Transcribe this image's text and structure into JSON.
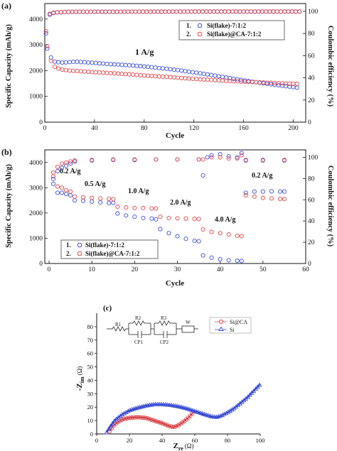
{
  "panels": [
    {
      "label": "(a)",
      "annotation": "1 A/g",
      "xlabel": "Cycle",
      "ylabel_left": "Specific Capacity (mAh/g)",
      "ylabel_right": "Coulombic efficiency (%)",
      "legend": [
        "1.",
        "Si(flake)-7:1:2",
        "2.",
        "Si(flake)@CA-7:1:2"
      ]
    },
    {
      "label": "(b)",
      "annotations": [
        "0.2 A/g",
        "0.5 A/g",
        "1.0 A/g",
        "2.0 A/g",
        "4.0 A/g",
        "0.2 A/g"
      ],
      "xlabel": "Cycle",
      "ylabel_left": "Specific Capacity (mAh/g)",
      "ylabel_right": "Coulombic efficiency (%)",
      "legend": [
        "1.",
        "Si(flake)-7:1:2",
        "2.",
        "Si(flake)@CA-7:1:2"
      ]
    },
    {
      "label": "(c)",
      "xlabel": "Z",
      "xlabel_sub": "re",
      "xunit": "(Ω)",
      "ylabel": "-Z",
      "ylabel_sub": "im",
      "yunit": "(Ω)",
      "legend": [
        "Si@CA",
        "Si"
      ],
      "circuit_labels": [
        "R1",
        "R2",
        "CP1",
        "R3",
        "CP2",
        "W"
      ]
    }
  ],
  "colors": {
    "si": "#3b4fd8",
    "sica": "#e0474c",
    "fit_blue": "#1f33c8",
    "fit_red": "#cc2030"
  },
  "chart_data": [
    {
      "type": "scatter",
      "x": {
        "range": [
          0,
          210
        ],
        "ticks": [
          0,
          40,
          80,
          120,
          160,
          200
        ]
      },
      "y_left": {
        "range": [
          0,
          4600
        ],
        "ticks": [
          0,
          1000,
          2000,
          3000,
          4000
        ]
      },
      "y_right": {
        "range": [
          0,
          107
        ],
        "ticks": [
          0,
          20,
          40,
          60,
          80,
          100
        ]
      },
      "series": [
        {
          "name": "Si(flake)-7:1:2",
          "axis": "left",
          "points": [
            [
              2,
              2850
            ],
            [
              4,
              2600
            ],
            [
              6,
              2420
            ],
            [
              8,
              2350
            ],
            [
              10,
              2330
            ],
            [
              12,
              2320
            ],
            [
              15,
              2310
            ],
            [
              20,
              2330
            ],
            [
              25,
              2350
            ],
            [
              30,
              2330
            ],
            [
              40,
              2300
            ],
            [
              50,
              2260
            ],
            [
              60,
              2230
            ],
            [
              70,
              2200
            ],
            [
              80,
              2160
            ],
            [
              90,
              2110
            ],
            [
              100,
              2060
            ],
            [
              110,
              2000
            ],
            [
              120,
              1930
            ],
            [
              130,
              1860
            ],
            [
              140,
              1780
            ],
            [
              150,
              1700
            ],
            [
              160,
              1620
            ],
            [
              170,
              1550
            ],
            [
              180,
              1480
            ],
            [
              190,
              1420
            ],
            [
              200,
              1360
            ],
            [
              205,
              1320
            ]
          ]
        },
        {
          "name": "Si(flake)@CA-7:1:2",
          "axis": "left",
          "points": [
            [
              2,
              2950
            ],
            [
              4,
              2500
            ],
            [
              6,
              2250
            ],
            [
              8,
              2150
            ],
            [
              10,
              2100
            ],
            [
              12,
              2060
            ],
            [
              15,
              2030
            ],
            [
              20,
              2000
            ],
            [
              30,
              1970
            ],
            [
              40,
              1940
            ],
            [
              50,
              1910
            ],
            [
              60,
              1880
            ],
            [
              70,
              1850
            ],
            [
              80,
              1810
            ],
            [
              90,
              1780
            ],
            [
              100,
              1750
            ],
            [
              110,
              1710
            ],
            [
              120,
              1680
            ],
            [
              130,
              1650
            ],
            [
              140,
              1620
            ],
            [
              150,
              1590
            ],
            [
              160,
              1570
            ],
            [
              170,
              1550
            ],
            [
              180,
              1530
            ],
            [
              190,
              1510
            ],
            [
              200,
              1490
            ],
            [
              205,
              1480
            ]
          ]
        },
        {
          "name": "Si(flake)-7:1:2",
          "axis": "right",
          "points": [
            [
              1,
              80
            ],
            [
              2,
              92
            ],
            [
              3,
              96
            ],
            [
              5,
              98
            ],
            [
              10,
              99
            ],
            [
              20,
              99.5
            ],
            [
              60,
              99.6
            ],
            [
              120,
              99.7
            ],
            [
              205,
              99.7
            ]
          ]
        },
        {
          "name": "Si(flake)@CA-7:1:2",
          "axis": "right",
          "points": [
            [
              1,
              82
            ],
            [
              2,
              93
            ],
            [
              3,
              97
            ],
            [
              5,
              98.5
            ],
            [
              10,
              99.2
            ],
            [
              20,
              99.6
            ],
            [
              60,
              99.7
            ],
            [
              120,
              99.8
            ],
            [
              205,
              99.8
            ]
          ]
        }
      ]
    },
    {
      "type": "scatter",
      "x": {
        "range": [
          -1,
          60
        ],
        "ticks": [
          0,
          10,
          20,
          30,
          40,
          50,
          60
        ]
      },
      "y_left": {
        "range": [
          0,
          4500
        ],
        "ticks": [
          0,
          1000,
          2000,
          3000,
          4000
        ]
      },
      "y_right": {
        "range": [
          0,
          107
        ],
        "ticks": [
          0,
          20,
          40,
          60,
          80,
          100
        ]
      },
      "series": [
        {
          "name": "Si(flake)-7:1:2",
          "axis": "left",
          "points": [
            [
              1,
              3350
            ],
            [
              2,
              2800
            ],
            [
              3,
              2800
            ],
            [
              4,
              2750
            ],
            [
              5,
              2700
            ],
            [
              6,
              2500
            ],
            [
              8,
              2480
            ],
            [
              10,
              2450
            ],
            [
              12,
              2420
            ],
            [
              14,
              2400
            ],
            [
              15,
              2400
            ],
            [
              16,
              1980
            ],
            [
              18,
              1900
            ],
            [
              20,
              1850
            ],
            [
              22,
              1800
            ],
            [
              24,
              1780
            ],
            [
              25,
              1750
            ],
            [
              26,
              1360
            ],
            [
              28,
              1200
            ],
            [
              30,
              1080
            ],
            [
              32,
              980
            ],
            [
              34,
              900
            ],
            [
              35,
              880
            ],
            [
              36,
              320
            ],
            [
              38,
              230
            ],
            [
              40,
              170
            ],
            [
              42,
              130
            ],
            [
              44,
              110
            ],
            [
              45,
              100
            ],
            [
              46,
              2800
            ],
            [
              48,
              2850
            ],
            [
              50,
              2850
            ],
            [
              52,
              2860
            ],
            [
              54,
              2850
            ],
            [
              55,
              2850
            ]
          ]
        },
        {
          "name": "Si(flake)@CA-7:1:2",
          "axis": "left",
          "points": [
            [
              1,
              3600
            ],
            [
              2,
              3050
            ],
            [
              3,
              3000
            ],
            [
              4,
              2900
            ],
            [
              5,
              2850
            ],
            [
              6,
              2650
            ],
            [
              8,
              2620
            ],
            [
              10,
              2600
            ],
            [
              12,
              2580
            ],
            [
              14,
              2560
            ],
            [
              15,
              2550
            ],
            [
              16,
              2250
            ],
            [
              18,
              2220
            ],
            [
              20,
              2200
            ],
            [
              22,
              2200
            ],
            [
              24,
              2180
            ],
            [
              25,
              2180
            ],
            [
              26,
              1850
            ],
            [
              28,
              1800
            ],
            [
              30,
              1790
            ],
            [
              32,
              1780
            ],
            [
              34,
              1770
            ],
            [
              35,
              1760
            ],
            [
              36,
              1350
            ],
            [
              38,
              1250
            ],
            [
              40,
              1200
            ],
            [
              42,
              1150
            ],
            [
              44,
              1100
            ],
            [
              45,
              1080
            ],
            [
              46,
              2700
            ],
            [
              48,
              2650
            ],
            [
              50,
              2600
            ],
            [
              52,
              2580
            ],
            [
              54,
              2560
            ],
            [
              55,
              2550
            ]
          ]
        },
        {
          "name": "Si(flake)-7:1:2",
          "axis": "right",
          "points": [
            [
              1,
              75
            ],
            [
              2,
              87
            ],
            [
              3,
              90
            ],
            [
              4,
              92
            ],
            [
              5,
              94
            ],
            [
              6,
              96
            ],
            [
              10,
              97
            ],
            [
              15,
              97.5
            ],
            [
              20,
              97.5
            ],
            [
              25,
              98
            ],
            [
              30,
              98
            ],
            [
              35,
              98
            ],
            [
              36,
              83
            ],
            [
              37,
              100
            ],
            [
              38,
              102
            ],
            [
              40,
              103
            ],
            [
              42,
              101
            ],
            [
              44,
              100
            ],
            [
              45,
              104
            ],
            [
              46,
              97
            ],
            [
              50,
              97
            ],
            [
              55,
              97
            ]
          ]
        },
        {
          "name": "Si(flake)@CA-7:1:2",
          "axis": "right",
          "points": [
            [
              1,
              82
            ],
            [
              2,
              91
            ],
            [
              3,
              94
            ],
            [
              4,
              95
            ],
            [
              5,
              96
            ],
            [
              6,
              97
            ],
            [
              10,
              97.5
            ],
            [
              15,
              98
            ],
            [
              20,
              98
            ],
            [
              25,
              98
            ],
            [
              30,
              98
            ],
            [
              35,
              98
            ],
            [
              36,
              98
            ],
            [
              38,
              100
            ],
            [
              40,
              100
            ],
            [
              42,
              99
            ],
            [
              44,
              99
            ],
            [
              45,
              102
            ],
            [
              46,
              97.5
            ],
            [
              50,
              97.5
            ],
            [
              55,
              97.5
            ]
          ]
        }
      ]
    },
    {
      "type": "scatter",
      "x": {
        "range": [
          0,
          100
        ],
        "ticks": [
          0,
          20,
          40,
          60,
          80,
          100
        ]
      },
      "y": {
        "range": [
          0,
          90
        ],
        "ticks": [
          0,
          10,
          20,
          30,
          40,
          50,
          60,
          70,
          80
        ]
      },
      "series": [
        {
          "name": "Si@CA",
          "points": [
            [
              8,
              2
            ],
            [
              10,
              6
            ],
            [
              13,
              9
            ],
            [
              16,
              11
            ],
            [
              20,
              12
            ],
            [
              25,
              12.5
            ],
            [
              30,
              12
            ],
            [
              35,
              10
            ],
            [
              40,
              8
            ],
            [
              44,
              6
            ],
            [
              47,
              5
            ],
            [
              50,
              6.5
            ],
            [
              53,
              9
            ],
            [
              56,
              12
            ],
            [
              59,
              16
            ]
          ]
        },
        {
          "name": "Si",
          "points": [
            [
              6,
              1
            ],
            [
              8,
              5
            ],
            [
              11,
              10
            ],
            [
              15,
              14
            ],
            [
              20,
              17.5
            ],
            [
              25,
              19.5
            ],
            [
              30,
              21
            ],
            [
              35,
              22
            ],
            [
              40,
              22
            ],
            [
              45,
              21.5
            ],
            [
              50,
              20.5
            ],
            [
              55,
              19
            ],
            [
              60,
              17
            ],
            [
              65,
              15
            ],
            [
              70,
              13
            ],
            [
              73,
              12.5
            ],
            [
              76,
              13.5
            ],
            [
              80,
              16
            ],
            [
              84,
              19
            ],
            [
              88,
              23
            ],
            [
              92,
              27
            ],
            [
              96,
              32
            ],
            [
              100,
              37
            ]
          ]
        }
      ]
    }
  ]
}
